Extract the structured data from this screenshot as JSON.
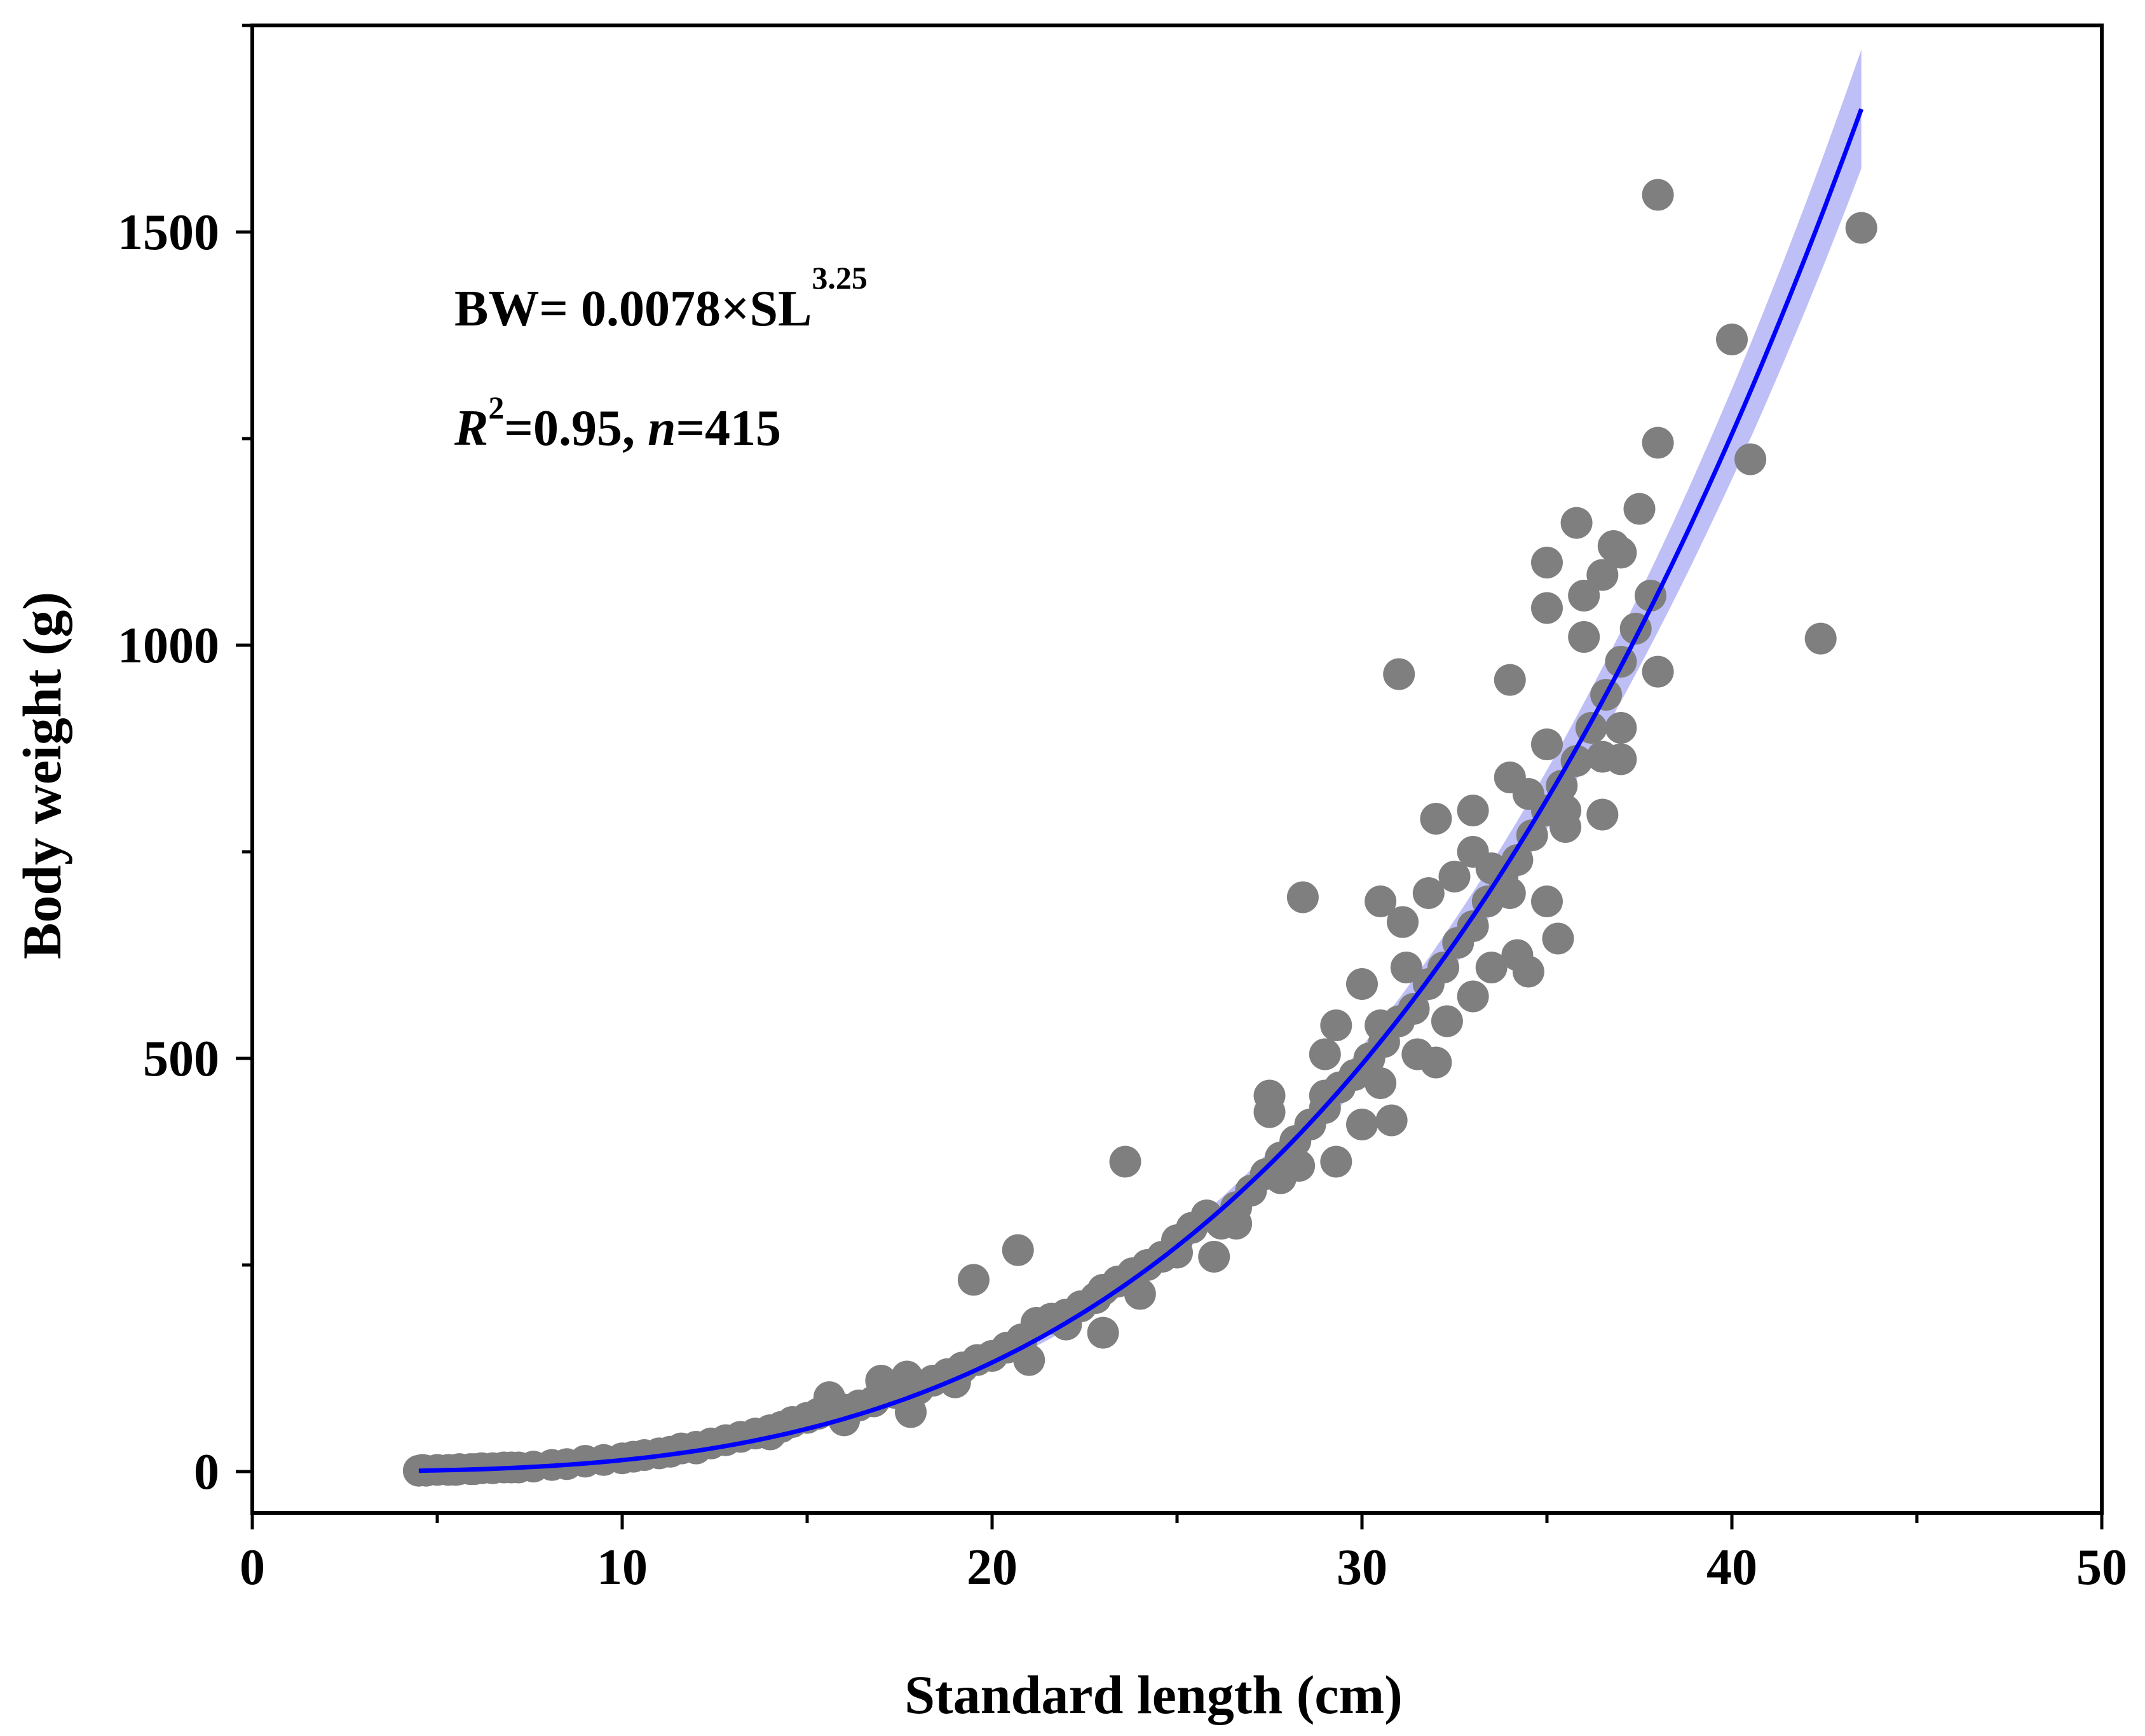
{
  "chart_data": {
    "type": "scatter",
    "title": "",
    "xlabel": "Standard length (cm)",
    "ylabel": "Body weight (g)",
    "xlim": [
      0,
      50
    ],
    "ylim": [
      -50,
      1750
    ],
    "x_ticks": [
      0,
      10,
      20,
      30,
      40,
      50
    ],
    "x_tick_labels": [
      "0",
      "10",
      "20",
      "30",
      "40",
      "50"
    ],
    "y_ticks": [
      0,
      500,
      1000,
      1500
    ],
    "y_tick_labels": [
      "0",
      "500",
      "1000",
      "1500"
    ],
    "grid": false,
    "legend": "none",
    "colors": {
      "points": "#7f7f7f",
      "fit_line": "#0000ff",
      "confidence_band": "#8a8af0"
    },
    "annotations": {
      "equation_main": "BW= 0.0078×SL",
      "equation_exponent": "3.25",
      "r_symbol": "R",
      "r_exponent": "2",
      "r_value": "=0.95, ",
      "n_symbol": "n",
      "n_value": "=415"
    },
    "fit": {
      "model": "power",
      "a": 0.0078,
      "b": 3.25,
      "x_range": [
        4.5,
        43.5
      ]
    },
    "points": [
      [
        4.5,
        1
      ],
      [
        4.6,
        2
      ],
      [
        4.7,
        1
      ],
      [
        5.0,
        2
      ],
      [
        5.3,
        2
      ],
      [
        5.6,
        3
      ],
      [
        5.9,
        3
      ],
      [
        6.2,
        4
      ],
      [
        6.5,
        4
      ],
      [
        6.8,
        5
      ],
      [
        7.2,
        5
      ],
      [
        7.6,
        6
      ],
      [
        8.1,
        8
      ],
      [
        8.5,
        9
      ],
      [
        9.0,
        12
      ],
      [
        9.5,
        14
      ],
      [
        10.0,
        16
      ],
      [
        10.3,
        18
      ],
      [
        10.6,
        20
      ],
      [
        11.0,
        22
      ],
      [
        11.3,
        24
      ],
      [
        11.6,
        28
      ],
      [
        12.0,
        30
      ],
      [
        12.4,
        34
      ],
      [
        12.8,
        38
      ],
      [
        13.2,
        42
      ],
      [
        13.6,
        46
      ],
      [
        14.0,
        50
      ],
      [
        14.3,
        54
      ],
      [
        14.6,
        60
      ],
      [
        15.0,
        65
      ],
      [
        15.3,
        70
      ],
      [
        15.6,
        90
      ],
      [
        16.0,
        75
      ],
      [
        16.4,
        80
      ],
      [
        16.8,
        85
      ],
      [
        17.0,
        110
      ],
      [
        17.4,
        95
      ],
      [
        17.7,
        115
      ],
      [
        18.0,
        100
      ],
      [
        18.4,
        110
      ],
      [
        18.8,
        118
      ],
      [
        19.2,
        126
      ],
      [
        19.6,
        135
      ],
      [
        20.0,
        140
      ],
      [
        20.4,
        150
      ],
      [
        20.8,
        160
      ],
      [
        21.2,
        180
      ],
      [
        21.6,
        185
      ],
      [
        22.0,
        190
      ],
      [
        22.4,
        200
      ],
      [
        22.8,
        210
      ],
      [
        23.0,
        220
      ],
      [
        23.4,
        230
      ],
      [
        23.8,
        240
      ],
      [
        24.2,
        250
      ],
      [
        24.6,
        260
      ],
      [
        25.0,
        280
      ],
      [
        25.4,
        295
      ],
      [
        25.8,
        310
      ],
      [
        26.2,
        300
      ],
      [
        26.6,
        320
      ],
      [
        27.0,
        340
      ],
      [
        27.4,
        360
      ],
      [
        27.8,
        380
      ],
      [
        28.2,
        400
      ],
      [
        28.6,
        420
      ],
      [
        29.0,
        440
      ],
      [
        29.4,
        465
      ],
      [
        29.8,
        480
      ],
      [
        30.2,
        500
      ],
      [
        30.6,
        520
      ],
      [
        31.0,
        545
      ],
      [
        31.4,
        560
      ],
      [
        31.8,
        590
      ],
      [
        32.2,
        610
      ],
      [
        32.6,
        640
      ],
      [
        33.0,
        660
      ],
      [
        33.4,
        690
      ],
      [
        33.8,
        720
      ],
      [
        34.2,
        740
      ],
      [
        34.6,
        770
      ],
      [
        35.0,
        800
      ],
      [
        35.4,
        830
      ],
      [
        35.8,
        860
      ],
      [
        36.2,
        900
      ],
      [
        36.6,
        940
      ],
      [
        37.0,
        980
      ],
      [
        37.4,
        1020
      ],
      [
        37.8,
        1060
      ],
      [
        19.5,
        232
      ],
      [
        20.7,
        268
      ],
      [
        23.6,
        375
      ],
      [
        28.4,
        695
      ],
      [
        31.0,
        965
      ],
      [
        31.1,
        665
      ],
      [
        30.5,
        690
      ],
      [
        32.0,
        790
      ],
      [
        33.0,
        800
      ],
      [
        34.0,
        958
      ],
      [
        34.0,
        840
      ],
      [
        35.0,
        1100
      ],
      [
        35.0,
        1045
      ],
      [
        35.8,
        1148
      ],
      [
        36.0,
        1010
      ],
      [
        36.0,
        1060
      ],
      [
        36.5,
        1085
      ],
      [
        36.8,
        1120
      ],
      [
        37.0,
        1112
      ],
      [
        37.5,
        1165
      ],
      [
        38.0,
        1545
      ],
      [
        38.0,
        1245
      ],
      [
        38.0,
        968
      ],
      [
        37.0,
        900
      ],
      [
        37.0,
        862
      ],
      [
        36.5,
        865
      ],
      [
        36.5,
        795
      ],
      [
        35.3,
        645
      ],
      [
        35.0,
        690
      ],
      [
        34.5,
        605
      ],
      [
        33.0,
        575
      ],
      [
        32.0,
        495
      ],
      [
        31.5,
        505
      ],
      [
        30.8,
        425
      ],
      [
        30.0,
        420
      ],
      [
        29.3,
        375
      ],
      [
        28.3,
        370
      ],
      [
        27.5,
        435
      ],
      [
        27.5,
        455
      ],
      [
        29.0,
        505
      ],
      [
        29.3,
        540
      ],
      [
        30.0,
        590
      ],
      [
        30.5,
        540
      ],
      [
        31.2,
        610
      ],
      [
        31.8,
        700
      ],
      [
        32.5,
        720
      ],
      [
        33.0,
        750
      ],
      [
        33.5,
        730
      ],
      [
        34.0,
        700
      ],
      [
        34.5,
        820
      ],
      [
        35.0,
        880
      ],
      [
        35.5,
        780
      ],
      [
        35.5,
        800
      ],
      [
        40.0,
        1370
      ],
      [
        40.5,
        1225
      ],
      [
        42.4,
        1008
      ],
      [
        43.5,
        1505
      ],
      [
        22.0,
        178
      ],
      [
        23.0,
        168
      ],
      [
        24.0,
        215
      ],
      [
        25.0,
        265
      ],
      [
        26.0,
        260
      ],
      [
        26.6,
        300
      ],
      [
        27.8,
        355
      ],
      [
        29.0,
        455
      ],
      [
        30.5,
        470
      ],
      [
        32.3,
        545
      ],
      [
        33.5,
        610
      ],
      [
        34.2,
        625
      ],
      [
        16.0,
        62
      ],
      [
        17.8,
        72
      ],
      [
        19.0,
        108
      ],
      [
        21.0,
        135
      ],
      [
        14.0,
        45
      ],
      [
        12.0,
        28
      ],
      [
        9.0,
        13
      ],
      [
        7.0,
        5
      ],
      [
        6.0,
        3
      ],
      [
        5.5,
        2
      ]
    ]
  }
}
